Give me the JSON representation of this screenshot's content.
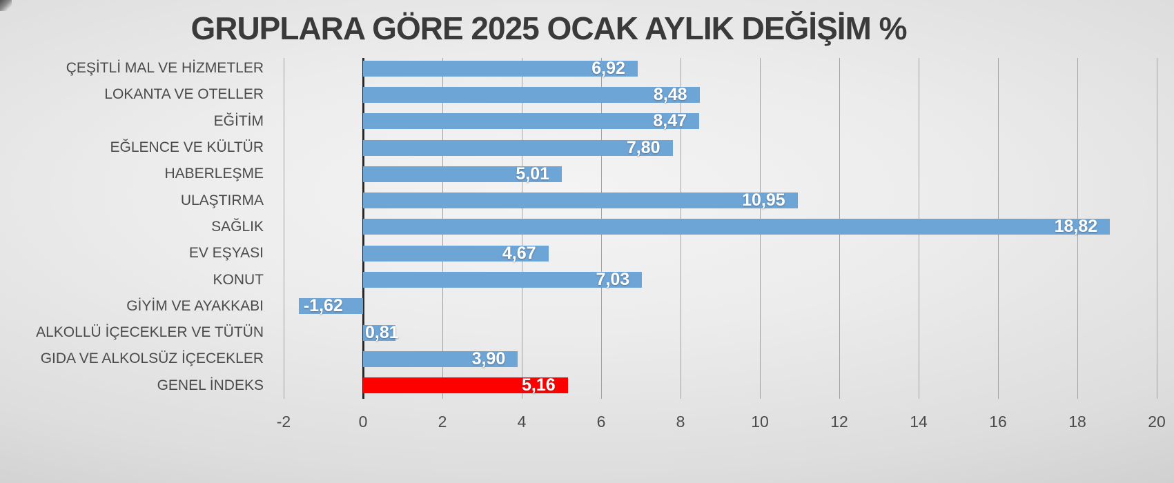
{
  "chart_data": {
    "type": "bar",
    "orientation": "horizontal",
    "title": "GRUPLARA GÖRE 2025 OCAK AYLIK DEĞİŞİM %",
    "categories": [
      "ÇEŞİTLİ MAL VE HİZMETLER",
      "LOKANTA VE OTELLER",
      "EĞİTİM",
      "EĞLENCE VE KÜLTÜR",
      "HABERLEŞME",
      "ULAŞTIRMA",
      "SAĞLIK",
      "EV EŞYASI",
      "KONUT",
      "GİYİM VE AYAKKABI",
      "ALKOLLÜ İÇECEKLER VE TÜTÜN",
      "GIDA VE ALKOLSÜZ İÇECEKLER",
      "GENEL İNDEKS"
    ],
    "values": [
      6.92,
      8.48,
      8.47,
      7.8,
      5.01,
      10.95,
      18.82,
      4.67,
      7.03,
      -1.62,
      0.81,
      3.9,
      5.16
    ],
    "value_labels": [
      "6,92",
      "8,48",
      "8,47",
      "7,80",
      "5,01",
      "10,95",
      "18,82",
      "4,67",
      "7,03",
      "-1,62",
      "0,81",
      "3,90",
      "5,16"
    ],
    "highlight_index": 12,
    "highlight_category": "GENEL İNDEKS",
    "x_ticks": [
      -2,
      0,
      2,
      4,
      6,
      8,
      10,
      12,
      14,
      16,
      18,
      20
    ],
    "x_tick_labels": [
      "-2",
      "0",
      "2",
      "4",
      "6",
      "8",
      "10",
      "12",
      "14",
      "16",
      "18",
      "20"
    ],
    "xlim": [
      -2,
      20
    ],
    "grid": true,
    "legend": false,
    "data_label_position": "inside-end",
    "colors": {
      "bar_default": "#6ea5d7",
      "bar_highlight": "#ff0000",
      "data_label": "#ffffff",
      "title_text": "#3a3a3a",
      "axis_text": "#4a4a4a",
      "gridline": "#a2a2a2",
      "zero_axis": "#272727",
      "background_center": "#f4f4f4",
      "background_edge": "#c2c2c2"
    }
  }
}
